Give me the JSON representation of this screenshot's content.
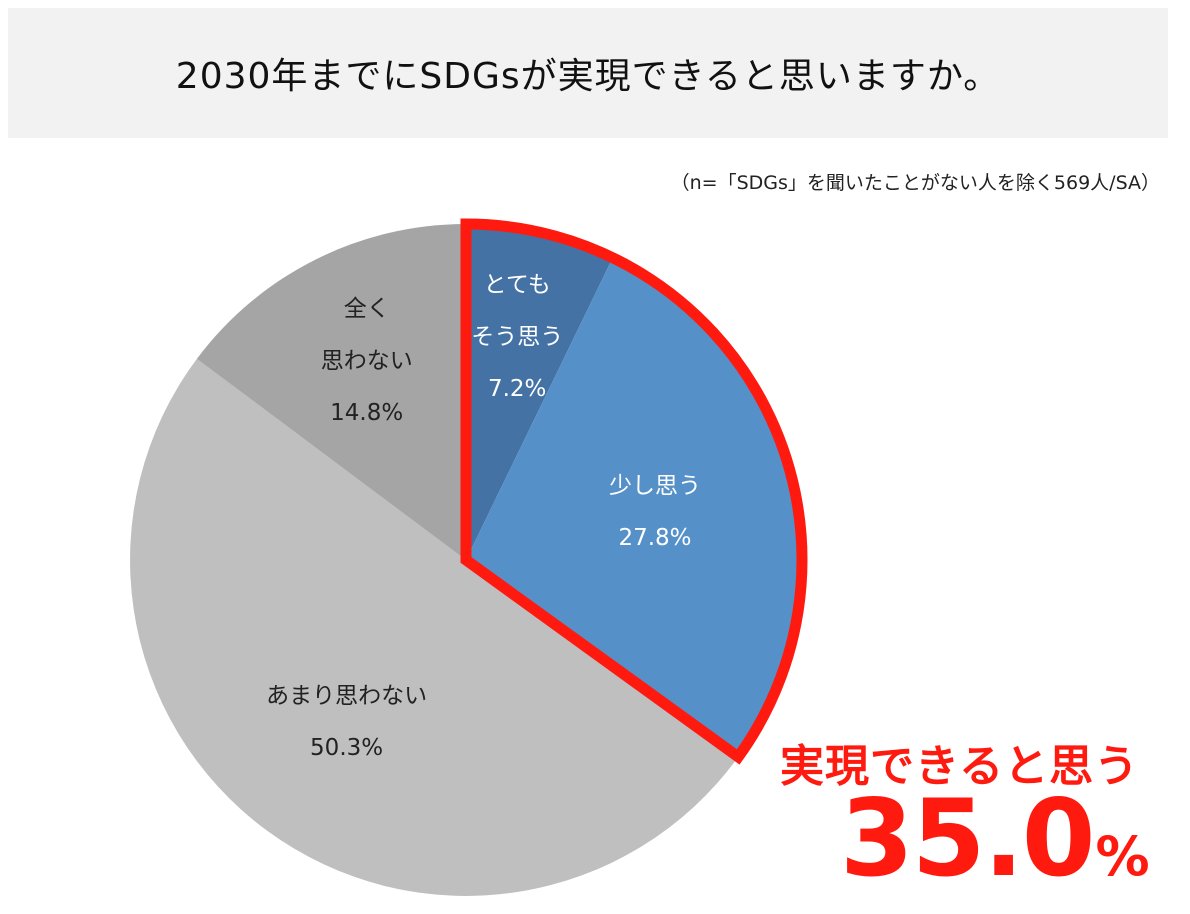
{
  "title": "2030年までにSDGsが実現できると思いますか。",
  "note": "（n=「SDGs」を聞いたことがない人を除く569人/SA）",
  "highlight": {
    "label": "実現できると思う",
    "number": "35.0",
    "unit": "%"
  },
  "chart_data": {
    "type": "pie",
    "title": "2030年までにSDGsが実現できると思いますか。",
    "start": "12 o'clock, clockwise",
    "slices": [
      {
        "label_lines": [
          "とても",
          "そう思う"
        ],
        "value": 7.2,
        "value_label": "7.2%",
        "color": "#4472a4",
        "text_color": "#ffffff"
      },
      {
        "label_lines": [
          "少し思う"
        ],
        "value": 27.8,
        "value_label": "27.8%",
        "color": "#5591c8",
        "text_color": "#ffffff"
      },
      {
        "label_lines": [
          "あまり思わない"
        ],
        "value": 50.3,
        "value_label": "50.3%",
        "color": "#bfbfbf",
        "text_color": "#222222"
      },
      {
        "label_lines": [
          "全く",
          "思わない"
        ],
        "value": 14.8,
        "value_label": "14.8%",
        "color": "#a5a5a5",
        "text_color": "#222222"
      }
    ],
    "highlight_slices": [
      0,
      1
    ],
    "highlight_color": "#ff1a10"
  }
}
